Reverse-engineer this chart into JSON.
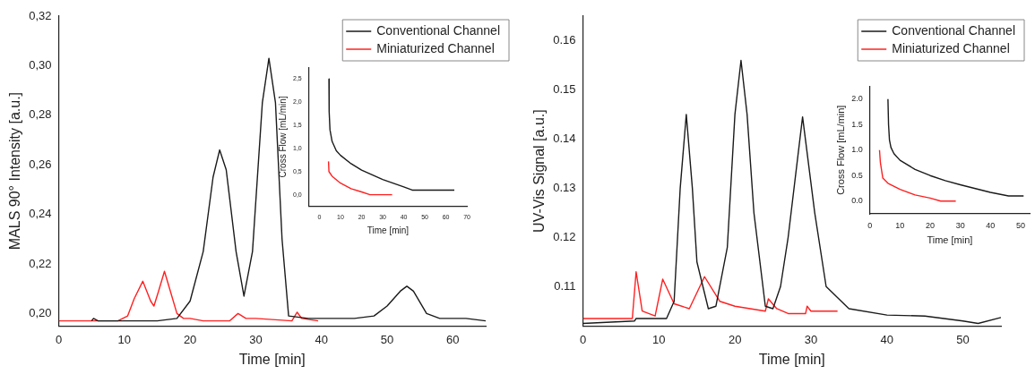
{
  "chart_data": [
    {
      "type": "line",
      "xlabel": "Time [min]",
      "ylabel": "MALS 90° Intensity [a.u.]",
      "xlim": [
        0,
        65
      ],
      "xticks": [
        0,
        10,
        20,
        30,
        40,
        50,
        60
      ],
      "ylim": [
        0.195,
        0.32
      ],
      "yticks": [
        {
          "value": 0.2,
          "label": "0,20"
        },
        {
          "value": 0.22,
          "label": "0,22"
        },
        {
          "value": 0.24,
          "label": "0,24"
        },
        {
          "value": 0.26,
          "label": "0,26"
        },
        {
          "value": 0.28,
          "label": "0,28"
        },
        {
          "value": 0.3,
          "label": "0,30"
        },
        {
          "value": 0.32,
          "label": "0,32"
        }
      ],
      "grid": false,
      "legend": "top right",
      "marker": "none",
      "line_style": "solid",
      "series": [
        {
          "name": "Conventional Channel",
          "color": "#1a1a1a",
          "x": [
            5,
            5.3,
            6,
            10,
            15,
            18,
            20,
            22,
            23.5,
            24.5,
            25.5,
            27,
            28.2,
            29.5,
            31,
            32,
            33,
            34,
            35,
            38,
            45,
            48,
            50,
            52,
            53,
            54,
            56,
            58,
            62,
            65
          ],
          "values": [
            0.197,
            0.198,
            0.197,
            0.197,
            0.197,
            0.198,
            0.205,
            0.225,
            0.255,
            0.266,
            0.258,
            0.225,
            0.207,
            0.225,
            0.285,
            0.303,
            0.285,
            0.23,
            0.199,
            0.198,
            0.198,
            0.199,
            0.203,
            0.209,
            0.211,
            0.209,
            0.2,
            0.198,
            0.198,
            0.197
          ]
        },
        {
          "name": "Miniaturized Channel",
          "color": "#ff2020",
          "x": [
            0,
            9,
            10.5,
            11.5,
            12.8,
            14,
            14.5,
            15.2,
            16.1,
            17,
            18,
            19,
            20,
            22,
            26,
            27.3,
            28.5,
            30,
            35.5,
            36.3,
            37,
            39.5
          ],
          "values": [
            0.197,
            0.197,
            0.199,
            0.206,
            0.213,
            0.205,
            0.203,
            0.209,
            0.217,
            0.209,
            0.2,
            0.198,
            0.198,
            0.197,
            0.197,
            0.2,
            0.198,
            0.198,
            0.197,
            0.2005,
            0.198,
            0.197
          ]
        }
      ]
    },
    {
      "type": "line",
      "xlabel": "Time [min]",
      "ylabel": "Cross Flow [mL/min]",
      "xlim": [
        -5,
        70
      ],
      "xticks": [
        0,
        10,
        20,
        30,
        40,
        50,
        60,
        70
      ],
      "ylim": [
        -0.25,
        2.75
      ],
      "yticks": [
        {
          "value": 0,
          "label": "0,0"
        },
        {
          "value": 0.5,
          "label": "0,5"
        },
        {
          "value": 1,
          "label": "1,0"
        },
        {
          "value": 1.5,
          "label": "1,5"
        },
        {
          "value": 2,
          "label": "2,0"
        },
        {
          "value": 2.5,
          "label": "2,5"
        }
      ],
      "grid": false,
      "marker": "none",
      "line_style": "solid",
      "series": [
        {
          "color": "#1a1a1a",
          "x": [
            4.5,
            4.6,
            5,
            6,
            8,
            10,
            15,
            20,
            30,
            40,
            44,
            64
          ],
          "values": [
            2.5,
            1.8,
            1.4,
            1.15,
            0.95,
            0.85,
            0.67,
            0.53,
            0.33,
            0.17,
            0.1,
            0.1
          ]
        },
        {
          "color": "#ff2020",
          "x": [
            4.3,
            4.5,
            6,
            10,
            15,
            20,
            24,
            34.5
          ],
          "values": [
            0.72,
            0.5,
            0.4,
            0.25,
            0.13,
            0.06,
            0,
            0
          ]
        }
      ]
    },
    {
      "type": "line",
      "xlabel": "Time [min]",
      "ylabel": "UV-Vis Signal [a.u.]",
      "xlim": [
        0,
        55
      ],
      "xticks": [
        0,
        10,
        20,
        30,
        40,
        50
      ],
      "ylim": [
        0.102,
        0.165
      ],
      "yticks": [
        0.11,
        0.12,
        0.13,
        0.14,
        0.15,
        0.16
      ],
      "grid": false,
      "legend": "top right",
      "marker": "none",
      "line_style": "solid",
      "series": [
        {
          "name": "Conventional Channel",
          "color": "#1a1a1a",
          "x": [
            0,
            6.8,
            7,
            8,
            11,
            12,
            12.8,
            13.6,
            14.4,
            15,
            16.5,
            17.5,
            19,
            20,
            20.8,
            21.6,
            22.5,
            24,
            25,
            26,
            27,
            28.9,
            30.5,
            32,
            35,
            40,
            45,
            50,
            52,
            55
          ],
          "values": [
            0.1025,
            0.103,
            0.1035,
            0.1035,
            0.1035,
            0.107,
            0.13,
            0.145,
            0.13,
            0.115,
            0.1055,
            0.106,
            0.118,
            0.145,
            0.156,
            0.145,
            0.125,
            0.106,
            0.1055,
            0.11,
            0.12,
            0.1445,
            0.125,
            0.11,
            0.1055,
            0.1042,
            0.104,
            0.103,
            0.1025,
            0.1037
          ]
        },
        {
          "name": "Miniaturized Channel",
          "color": "#ff2020",
          "x": [
            0,
            6.5,
            7,
            7.8,
            9.5,
            10.5,
            12,
            14,
            16,
            18,
            20,
            24,
            24.4,
            25.5,
            27,
            29.3,
            29.5,
            30,
            33.5
          ],
          "values": [
            0.1035,
            0.1035,
            0.113,
            0.105,
            0.104,
            0.1115,
            0.1065,
            0.1055,
            0.112,
            0.107,
            0.106,
            0.105,
            0.1075,
            0.1055,
            0.1045,
            0.1045,
            0.106,
            0.105,
            0.105
          ]
        }
      ]
    },
    {
      "type": "line",
      "xlabel": "Time [min]",
      "ylabel": "Cross Flow [mL/min]",
      "xlim": [
        0,
        53
      ],
      "xticks": [
        0,
        10,
        20,
        30,
        40,
        50
      ],
      "ylim": [
        -0.25,
        2.25
      ],
      "yticks": [
        {
          "value": 0,
          "label": "0.0"
        },
        {
          "value": 0.5,
          "label": "0.5"
        },
        {
          "value": 1,
          "label": "1.0"
        },
        {
          "value": 1.5,
          "label": "1.5"
        },
        {
          "value": 2,
          "label": "2.0"
        }
      ],
      "grid": false,
      "marker": "none",
      "line_style": "solid",
      "series": [
        {
          "color": "#1a1a1a",
          "x": [
            6,
            6.2,
            6.5,
            7,
            8,
            10,
            15,
            20,
            25,
            30,
            40,
            46,
            51
          ],
          "values": [
            2,
            1.5,
            1.2,
            1.05,
            0.93,
            0.8,
            0.62,
            0.5,
            0.4,
            0.32,
            0.17,
            0.1,
            0.1
          ]
        },
        {
          "color": "#ff2020",
          "x": [
            3.2,
            3.5,
            4.3,
            6,
            10,
            15,
            20,
            23.5,
            28.5
          ],
          "values": [
            1,
            0.75,
            0.45,
            0.35,
            0.23,
            0.12,
            0.06,
            0,
            0
          ]
        }
      ]
    }
  ]
}
